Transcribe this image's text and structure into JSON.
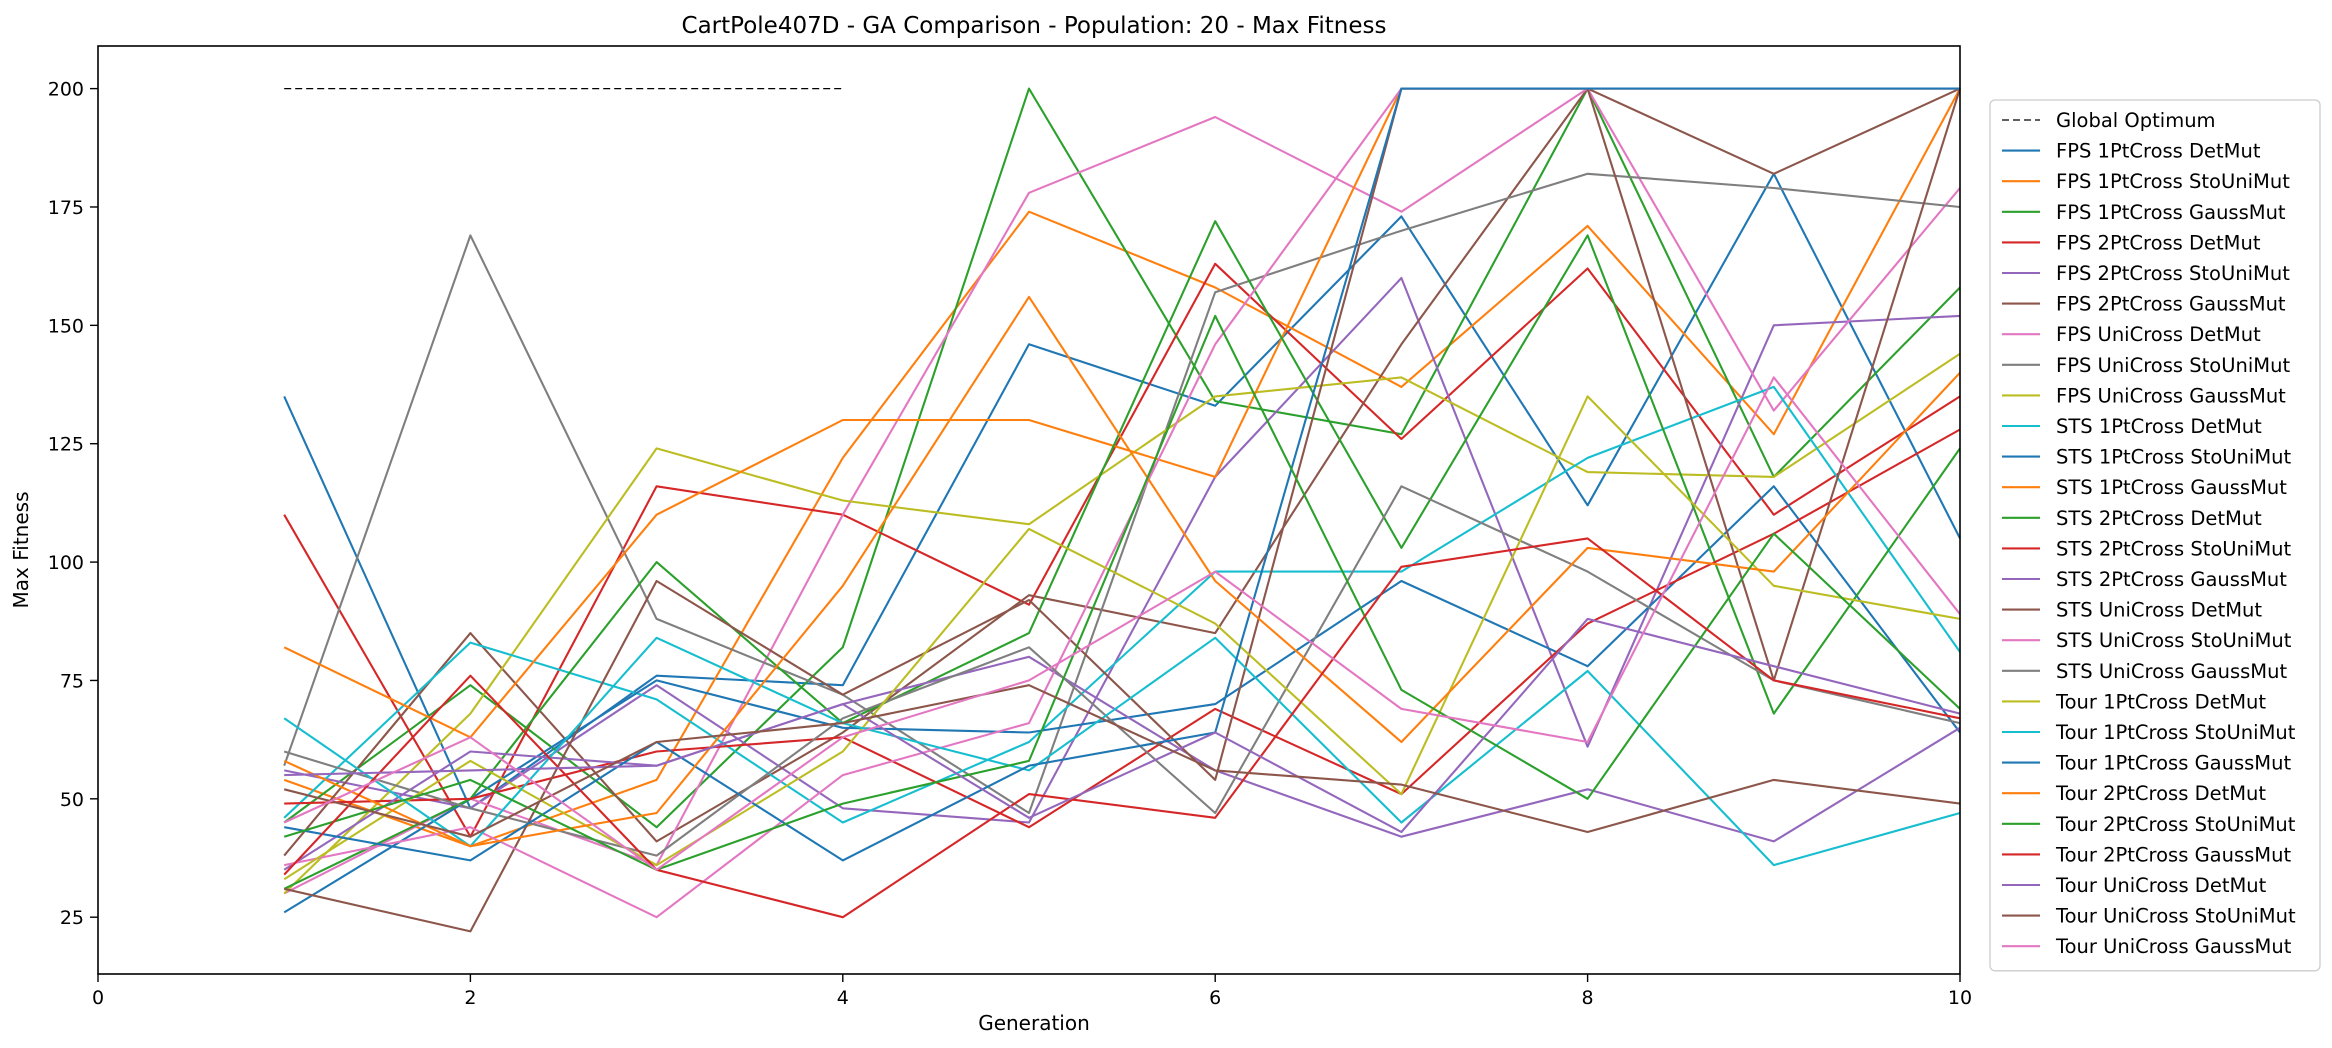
{
  "chart_data": {
    "type": "line",
    "title": "CartPole407D - GA Comparison - Population: 20 - Max Fitness",
    "xlabel": "Generation",
    "ylabel": "Max Fitness",
    "xlim": [
      0,
      10
    ],
    "ylim": [
      13,
      209
    ],
    "xticks": [
      0,
      2,
      4,
      6,
      8,
      10
    ],
    "yticks": [
      25,
      50,
      75,
      100,
      125,
      150,
      175,
      200
    ],
    "grid": false,
    "legend_position": "right",
    "x": [
      1,
      2,
      3,
      4,
      5,
      6,
      7,
      8,
      9,
      10
    ],
    "series": [
      {
        "name": "Global Optimum",
        "color": "#000000",
        "dashed": true,
        "x": [
          1,
          4
        ],
        "values": [
          200,
          200
        ]
      },
      {
        "name": "FPS 1PtCross DetMut",
        "color": "#1f77b4",
        "values": [
          135,
          48,
          76,
          74,
          146,
          133,
          173,
          112,
          182,
          105
        ]
      },
      {
        "name": "FPS 1PtCross StoUniMut",
        "color": "#ff7f0e",
        "values": [
          54,
          40,
          54,
          122,
          174,
          158,
          137,
          171,
          127,
          200
        ]
      },
      {
        "name": "FPS 1PtCross GaussMut",
        "color": "#2ca02c",
        "values": [
          45,
          74,
          44,
          82,
          200,
          134,
          127,
          200,
          118,
          158
        ]
      },
      {
        "name": "FPS 2PtCross DetMut",
        "color": "#d62728",
        "values": [
          110,
          42,
          116,
          110,
          91,
          163,
          126,
          162,
          110,
          135
        ]
      },
      {
        "name": "FPS 2PtCross StoUniMut",
        "color": "#9467bd",
        "values": [
          56,
          48,
          74,
          48,
          45,
          118,
          160,
          61,
          150,
          152
        ]
      },
      {
        "name": "FPS 2PtCross GaussMut",
        "color": "#8c564b",
        "values": [
          38,
          85,
          41,
          64,
          93,
          85,
          146,
          200,
          182,
          200
        ]
      },
      {
        "name": "FPS UniCross DetMut",
        "color": "#e377c2",
        "values": [
          30,
          50,
          36,
          110,
          178,
          194,
          174,
          200,
          132,
          179
        ]
      },
      {
        "name": "FPS UniCross StoUniMut",
        "color": "#7f7f7f",
        "values": [
          57,
          169,
          88,
          72,
          47,
          157,
          170,
          182,
          179,
          175
        ]
      },
      {
        "name": "FPS UniCross GaussMut",
        "color": "#bcbd22",
        "values": [
          30,
          68,
          124,
          113,
          108,
          135,
          139,
          119,
          118,
          144
        ]
      },
      {
        "name": "STS 1PtCross DetMut",
        "color": "#17becf",
        "values": [
          46,
          83,
          71,
          45,
          62,
          98,
          98,
          122,
          137,
          81
        ]
      },
      {
        "name": "STS 1PtCross StoUniMut",
        "color": "#1f77b4",
        "values": [
          26,
          50,
          75,
          65,
          64,
          70,
          96,
          78,
          116,
          64
        ]
      },
      {
        "name": "STS 1PtCross GaussMut",
        "color": "#ff7f0e",
        "values": [
          82,
          63,
          110,
          130,
          130,
          118,
          200,
          200,
          200,
          200
        ]
      },
      {
        "name": "STS 2PtCross DetMut",
        "color": "#2ca02c",
        "values": [
          31,
          50,
          100,
          66,
          85,
          172,
          103,
          169,
          68,
          124
        ]
      },
      {
        "name": "STS 2PtCross StoUniMut",
        "color": "#d62728",
        "values": [
          49,
          50,
          60,
          63,
          44,
          69,
          51,
          87,
          106,
          128
        ]
      },
      {
        "name": "STS 2PtCross GaussMut",
        "color": "#9467bd",
        "values": [
          35,
          60,
          57,
          70,
          80,
          56,
          42,
          52,
          41,
          65
        ]
      },
      {
        "name": "STS UniCross DetMut",
        "color": "#8c564b",
        "values": [
          31,
          22,
          96,
          72,
          92,
          54,
          200,
          200,
          75,
          200
        ]
      },
      {
        "name": "STS UniCross StoUniMut",
        "color": "#e377c2",
        "values": [
          36,
          44,
          25,
          55,
          66,
          146,
          200,
          200,
          200,
          200
        ]
      },
      {
        "name": "STS UniCross GaussMut",
        "color": "#7f7f7f",
        "values": [
          60,
          48,
          38,
          67,
          82,
          47,
          116,
          98,
          75,
          66
        ]
      },
      {
        "name": "Tour 1PtCross DetMut",
        "color": "#bcbd22",
        "values": [
          33,
          58,
          36,
          60,
          107,
          87,
          51,
          135,
          95,
          88
        ]
      },
      {
        "name": "Tour 1PtCross StoUniMut",
        "color": "#17becf",
        "values": [
          67,
          40,
          84,
          66,
          56,
          84,
          45,
          77,
          36,
          47
        ]
      },
      {
        "name": "Tour 1PtCross GaussMut",
        "color": "#1f77b4",
        "values": [
          44,
          37,
          62,
          37,
          57,
          64,
          200,
          200,
          200,
          200
        ]
      },
      {
        "name": "Tour 2PtCross DetMut",
        "color": "#ff7f0e",
        "values": [
          58,
          40,
          47,
          95,
          156,
          96,
          62,
          103,
          98,
          140
        ]
      },
      {
        "name": "Tour 2PtCross StoUniMut",
        "color": "#2ca02c",
        "values": [
          42,
          54,
          35,
          49,
          58,
          152,
          73,
          50,
          106,
          69
        ]
      },
      {
        "name": "Tour 2PtCross GaussMut",
        "color": "#d62728",
        "values": [
          34,
          76,
          35,
          25,
          51,
          46,
          99,
          105,
          75,
          67
        ]
      },
      {
        "name": "Tour UniCross DetMut",
        "color": "#9467bd",
        "values": [
          55,
          56,
          57,
          70,
          46,
          64,
          43,
          88,
          78,
          68
        ]
      },
      {
        "name": "Tour UniCross StoUniMut",
        "color": "#8c564b",
        "values": [
          52,
          42,
          62,
          66,
          74,
          56,
          53,
          43,
          54,
          49
        ]
      },
      {
        "name": "Tour UniCross GaussMut",
        "color": "#e377c2",
        "values": [
          45,
          63,
          35,
          63,
          75,
          98,
          69,
          62,
          139,
          89
        ]
      }
    ]
  }
}
